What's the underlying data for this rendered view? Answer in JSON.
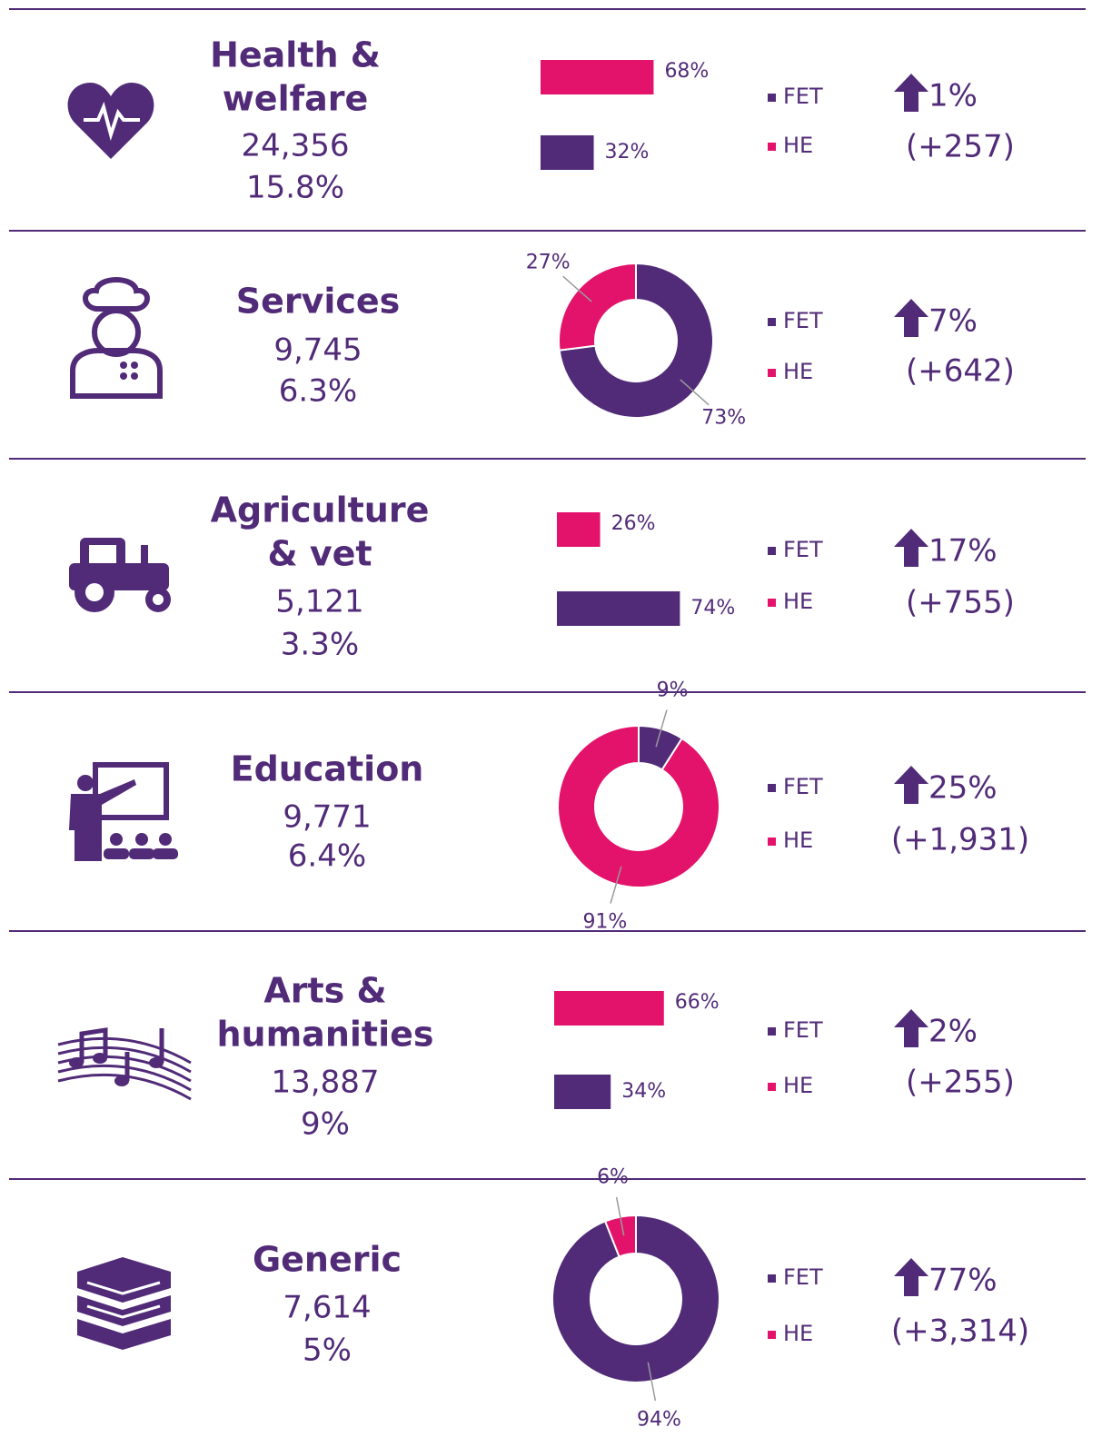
{
  "chart_data": [
    {
      "type": "bar",
      "title": [
        "Health &",
        "welfare"
      ],
      "count": "24,356",
      "share": "15.8%",
      "categories": [
        "FET",
        "HE"
      ],
      "values": [
        32,
        68
      ],
      "value_labels": [
        "32%",
        "68%"
      ],
      "colors": [
        "#512b78",
        "#e3136b"
      ],
      "change": "1%",
      "change_count": "(+257)"
    },
    {
      "type": "pie",
      "title": [
        "Services"
      ],
      "count": "9,745",
      "share": "6.3%",
      "categories": [
        "FET",
        "HE"
      ],
      "values": [
        73,
        27
      ],
      "value_labels": [
        "73%",
        "27%"
      ],
      "colors": [
        "#512b78",
        "#e3136b"
      ],
      "change": "7%",
      "change_count": "(+642)"
    },
    {
      "type": "bar",
      "title": [
        "Agriculture",
        "& vet"
      ],
      "count": "5,121",
      "share": "3.3%",
      "categories": [
        "FET",
        "HE"
      ],
      "values": [
        74,
        26
      ],
      "value_labels": [
        "74%",
        "26%"
      ],
      "colors": [
        "#512b78",
        "#e3136b"
      ],
      "change": "17%",
      "change_count": "(+755)"
    },
    {
      "type": "pie",
      "title": [
        "Education"
      ],
      "count": "9,771",
      "share": "6.4%",
      "categories": [
        "FET",
        "HE"
      ],
      "values": [
        9,
        91
      ],
      "value_labels": [
        "9%",
        "91%"
      ],
      "colors": [
        "#512b78",
        "#e3136b"
      ],
      "change": "25%",
      "change_count": "(+1,931)"
    },
    {
      "type": "bar",
      "title": [
        "Arts &",
        "humanities"
      ],
      "count": "13,887",
      "share": "9%",
      "categories": [
        "FET",
        "HE"
      ],
      "values": [
        34,
        66
      ],
      "value_labels": [
        "34%",
        "66%"
      ],
      "colors": [
        "#512b78",
        "#e3136b"
      ],
      "change": "2%",
      "change_count": "(+255)"
    },
    {
      "type": "pie",
      "title": [
        "Generic"
      ],
      "count": "7,614",
      "share": "5%",
      "categories": [
        "FET",
        "HE"
      ],
      "values": [
        94,
        6
      ],
      "value_labels": [
        "94%",
        "6%"
      ],
      "colors": [
        "#512b78",
        "#e3136b"
      ],
      "change": "77%",
      "change_count": "(+3,314)"
    }
  ]
}
